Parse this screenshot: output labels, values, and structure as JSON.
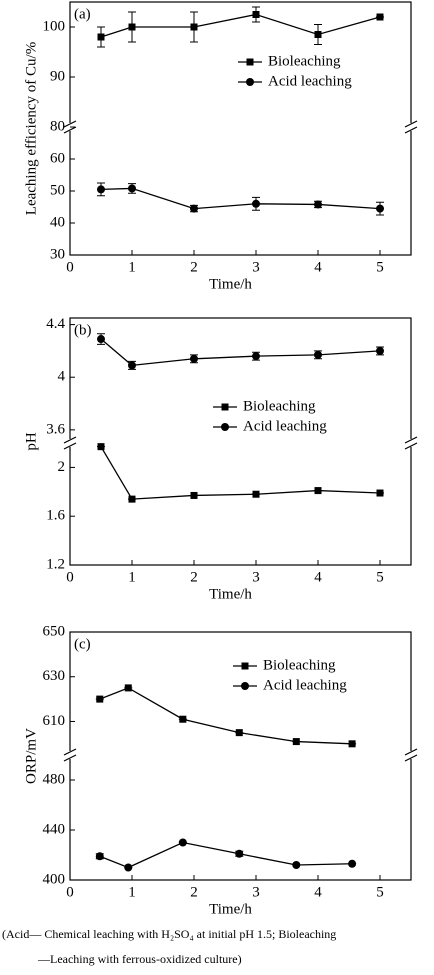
{
  "chart_data": [
    {
      "type": "line",
      "panel_label": "(a)",
      "xlabel": "Time/h",
      "ylabel": "Leaching efficiency of Cu/%",
      "x": [
        0.5,
        1,
        2,
        3,
        4,
        5
      ],
      "xlim": [
        0,
        5.5
      ],
      "xticks": [
        0,
        1,
        2,
        3,
        4,
        5
      ],
      "ylim": [
        30,
        105
      ],
      "ybreak": [
        70,
        80
      ],
      "yticks": [
        30,
        40,
        50,
        60,
        80,
        90,
        100
      ],
      "series": [
        {
          "name": "Bioleaching",
          "marker": "square",
          "color": "#000",
          "values": [
            98,
            100,
            100,
            102.5,
            98.5,
            102
          ],
          "errors": [
            2,
            3,
            3,
            1.5,
            2,
            0
          ]
        },
        {
          "name": "Acid leaching",
          "marker": "circle",
          "color": "#000",
          "values": [
            50.5,
            50.8,
            44.5,
            46,
            45.8,
            44.5
          ],
          "errors": [
            2,
            1.5,
            1,
            2,
            1,
            2
          ]
        }
      ]
    },
    {
      "type": "line",
      "panel_label": "(b)",
      "xlabel": "Time/h",
      "ylabel": "pH",
      "x": [
        0.5,
        1,
        2,
        3,
        4,
        5
      ],
      "xlim": [
        0,
        5.5
      ],
      "xticks": [
        0,
        1,
        2,
        3,
        4,
        5
      ],
      "ylim": [
        1.2,
        4.45
      ],
      "ybreak": [
        2.2,
        3.5
      ],
      "yticks": [
        1.2,
        1.6,
        2.0,
        3.6,
        4.0,
        4.4
      ],
      "series": [
        {
          "name": "Bioleaching",
          "marker": "square",
          "color": "#000",
          "values": [
            2.17,
            1.74,
            1.77,
            1.78,
            1.81,
            1.79
          ],
          "errors": [
            0,
            0,
            0,
            0,
            0,
            0
          ]
        },
        {
          "name": "Acid leaching",
          "marker": "circle",
          "color": "#000",
          "values": [
            4.29,
            4.09,
            4.14,
            4.16,
            4.17,
            4.2
          ],
          "errors": [
            0.04,
            0.03,
            0.03,
            0.03,
            0.03,
            0.03
          ]
        }
      ]
    },
    {
      "type": "line",
      "panel_label": "(c)",
      "xlabel": "Time/h",
      "ylabel": "ORP/mV",
      "x": [
        0.48,
        0.94,
        1.82,
        2.73,
        3.65,
        4.55
      ],
      "xlim": [
        0,
        5.5
      ],
      "xticks": [
        0,
        1,
        2,
        3,
        4,
        5
      ],
      "ylim": [
        400,
        650
      ],
      "ybreak": [
        500,
        595
      ],
      "yticks": [
        400,
        440,
        480,
        610,
        630,
        650
      ],
      "series": [
        {
          "name": "Bioleaching",
          "marker": "square",
          "color": "#000",
          "values": [
            620,
            625,
            611,
            605,
            601,
            600
          ],
          "errors": [
            0,
            0,
            0,
            0,
            0,
            0
          ]
        },
        {
          "name": "Acid leaching",
          "marker": "circle",
          "color": "#000",
          "values": [
            419,
            410,
            430,
            421,
            412,
            413
          ],
          "errors": [
            2,
            0,
            0,
            2,
            0,
            0
          ]
        }
      ]
    }
  ],
  "caption": [
    "(Acid— Chemical leaching with H₂SO₄ at initial pH 1.5;   Bioleaching",
    "—Leaching with ferrous-oxidized culture)"
  ]
}
